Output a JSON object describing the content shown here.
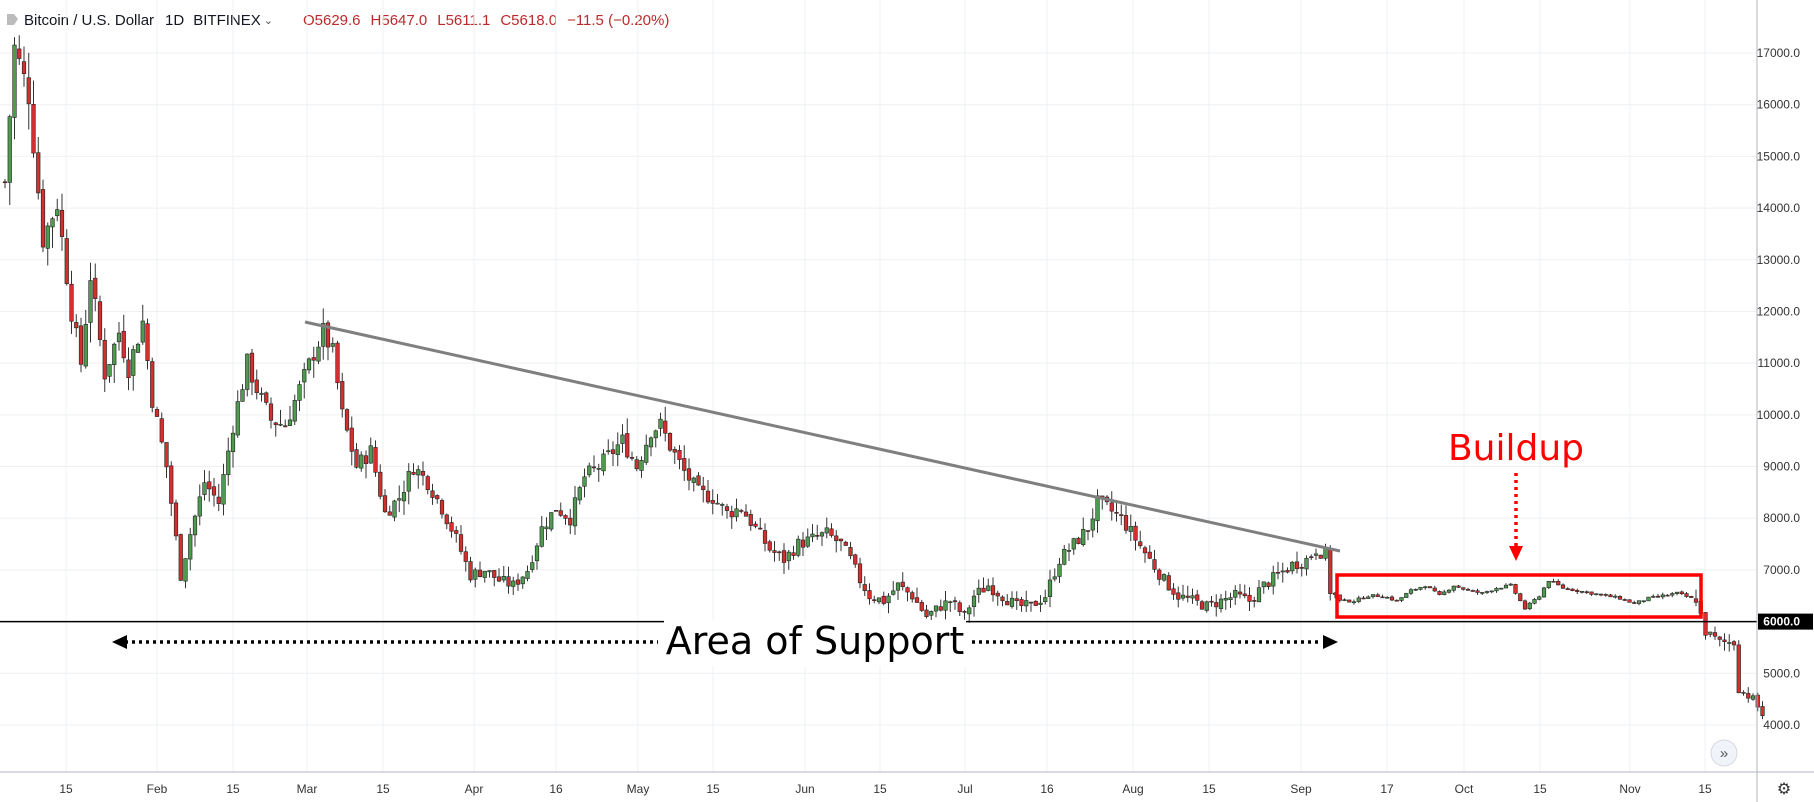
{
  "header": {
    "symbol": "Bitcoin / U.S. Dollar",
    "interval": "1D",
    "exchange": "BITFINEX",
    "open": "O5629.6",
    "high": "H5647.0",
    "low": "L5611.1",
    "close": "C5618.0",
    "change": "−11.5 (−0.20%)"
  },
  "colors": {
    "up": "#4e9a4e",
    "down": "#d32f2f",
    "wick": "#333333",
    "trendline": "#7f7f7f",
    "support": "#000000",
    "annotation": "#ff0000",
    "grid": "#eef0f3"
  },
  "chart_data": {
    "type": "candlestick",
    "title": "Bitcoin / U.S. Dollar · 1D · BITFINEX",
    "ylim": [
      3500,
      18100
    ],
    "y_ticks": [
      4000,
      5000,
      6000,
      7000,
      8000,
      9000,
      10000,
      11000,
      12000,
      13000,
      14000,
      15000,
      16000,
      17000
    ],
    "x_ticks": [
      "15",
      "Feb",
      "15",
      "Mar",
      "15",
      "Apr",
      "16",
      "May",
      "15",
      "Jun",
      "15",
      "Jul",
      "16",
      "Aug",
      "15",
      "Sep",
      "17",
      "Oct",
      "15",
      "Nov",
      "15"
    ],
    "price_label": "6000.0",
    "support_level": 6000,
    "close_path": [
      [
        0,
        14500
      ],
      [
        2,
        17100
      ],
      [
        5,
        16200
      ],
      [
        8,
        13400
      ],
      [
        11,
        14100
      ],
      [
        14,
        12000
      ],
      [
        16,
        11000
      ],
      [
        18,
        12700
      ],
      [
        21,
        10800
      ],
      [
        24,
        11600
      ],
      [
        26,
        10900
      ],
      [
        29,
        11800
      ],
      [
        31,
        10300
      ],
      [
        34,
        9000
      ],
      [
        37,
        6900
      ],
      [
        39,
        7700
      ],
      [
        42,
        8700
      ],
      [
        45,
        8300
      ],
      [
        48,
        9800
      ],
      [
        51,
        11000
      ],
      [
        53,
        10500
      ],
      [
        56,
        9900
      ],
      [
        59,
        9800
      ],
      [
        62,
        10500
      ],
      [
        65,
        11200
      ],
      [
        67,
        11600
      ],
      [
        69,
        11200
      ],
      [
        71,
        10000
      ],
      [
        74,
        9000
      ],
      [
        77,
        9300
      ],
      [
        80,
        8100
      ],
      [
        83,
        8400
      ],
      [
        86,
        9000
      ],
      [
        89,
        8700
      ],
      [
        92,
        8200
      ],
      [
        95,
        7600
      ],
      [
        98,
        6900
      ],
      [
        101,
        7000
      ],
      [
        104,
        6800
      ],
      [
        107,
        6700
      ],
      [
        110,
        7000
      ],
      [
        113,
        7800
      ],
      [
        116,
        8200
      ],
      [
        119,
        8000
      ],
      [
        122,
        8800
      ],
      [
        125,
        9000
      ],
      [
        128,
        9300
      ],
      [
        130,
        9500
      ],
      [
        133,
        9000
      ],
      [
        136,
        9700
      ],
      [
        138,
        9800
      ],
      [
        140,
        9400
      ],
      [
        143,
        8900
      ],
      [
        146,
        8500
      ],
      [
        149,
        8400
      ],
      [
        152,
        8100
      ],
      [
        155,
        8200
      ],
      [
        158,
        7800
      ],
      [
        161,
        7400
      ],
      [
        164,
        7200
      ],
      [
        167,
        7500
      ],
      [
        170,
        7600
      ],
      [
        173,
        7700
      ],
      [
        176,
        7500
      ],
      [
        178,
        7200
      ],
      [
        180,
        6800
      ],
      [
        182,
        6500
      ],
      [
        185,
        6400
      ],
      [
        188,
        6700
      ],
      [
        191,
        6500
      ],
      [
        194,
        6100
      ],
      [
        197,
        6300
      ],
      [
        199,
        6400
      ],
      [
        202,
        6100
      ],
      [
        204,
        6500
      ],
      [
        207,
        6700
      ],
      [
        210,
        6500
      ],
      [
        213,
        6300
      ],
      [
        216,
        6300
      ],
      [
        219,
        6500
      ],
      [
        222,
        7200
      ],
      [
        225,
        7500
      ],
      [
        228,
        7800
      ],
      [
        230,
        8300
      ],
      [
        232,
        8200
      ],
      [
        235,
        8000
      ],
      [
        238,
        7600
      ],
      [
        241,
        7200
      ],
      [
        244,
        6800
      ],
      [
        247,
        6500
      ],
      [
        250,
        6400
      ],
      [
        253,
        6300
      ],
      [
        256,
        6400
      ],
      [
        259,
        6500
      ],
      [
        262,
        6400
      ],
      [
        265,
        6700
      ],
      [
        268,
        6900
      ],
      [
        271,
        7100
      ],
      [
        274,
        7200
      ],
      [
        276,
        7400
      ],
      [
        278,
        7300
      ],
      [
        279,
        6600
      ],
      [
        281,
        6400
      ],
      [
        284,
        6400
      ],
      [
        287,
        6500
      ],
      [
        290,
        6500
      ],
      [
        293,
        6400
      ],
      [
        296,
        6600
      ],
      [
        299,
        6700
      ],
      [
        302,
        6500
      ],
      [
        305,
        6700
      ],
      [
        308,
        6600
      ],
      [
        311,
        6550
      ],
      [
        314,
        6650
      ],
      [
        317,
        6700
      ],
      [
        320,
        6250
      ],
      [
        323,
        6500
      ],
      [
        325,
        6800
      ],
      [
        328,
        6650
      ],
      [
        331,
        6600
      ],
      [
        334,
        6550
      ],
      [
        337,
        6500
      ],
      [
        340,
        6450
      ],
      [
        343,
        6350
      ],
      [
        346,
        6450
      ],
      [
        349,
        6500
      ],
      [
        352,
        6550
      ],
      [
        355,
        6450
      ],
      [
        356,
        6450
      ],
      [
        358,
        5800
      ],
      [
        361,
        5600
      ],
      [
        364,
        5600
      ],
      [
        365,
        4700
      ],
      [
        368,
        4500
      ],
      [
        370,
        4200
      ]
    ],
    "annotations": {
      "trendline_label": "",
      "support_label": "Area of Support",
      "buildup_label": "Buildup"
    }
  }
}
